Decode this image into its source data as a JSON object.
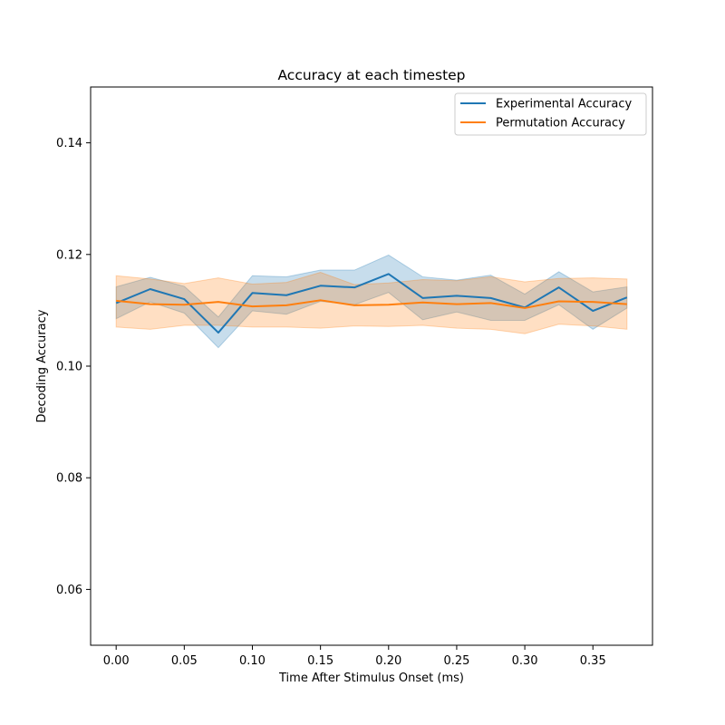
{
  "chart_data": {
    "type": "line",
    "title": "Accuracy at each timestep",
    "xlabel": "Time After Stimulus Onset (ms)",
    "ylabel": "Decoding Accuracy",
    "xlim": [
      -0.01875,
      0.39375
    ],
    "ylim": [
      0.05,
      0.15
    ],
    "xticks": [
      0.0,
      0.05,
      0.1,
      0.15,
      0.2,
      0.25,
      0.3,
      0.35
    ],
    "xtick_labels": [
      "0.00",
      "0.05",
      "0.10",
      "0.15",
      "0.20",
      "0.25",
      "0.30",
      "0.35"
    ],
    "yticks": [
      0.06,
      0.08,
      0.1,
      0.12,
      0.14
    ],
    "ytick_labels": [
      "0.06",
      "0.08",
      "0.10",
      "0.12",
      "0.14"
    ],
    "grid": false,
    "legend_position": "top-right",
    "x": [
      0.0,
      0.025,
      0.05,
      0.075,
      0.1,
      0.125,
      0.15,
      0.175,
      0.2,
      0.225,
      0.25,
      0.275,
      0.3,
      0.325,
      0.35,
      0.375
    ],
    "series": [
      {
        "name": "Experimental Accuracy",
        "color": "#1f77b4",
        "values": [
          0.1113,
          0.1138,
          0.112,
          0.106,
          0.1131,
          0.1127,
          0.1144,
          0.1141,
          0.1165,
          0.1122,
          0.1126,
          0.1122,
          0.1105,
          0.1141,
          0.1099,
          0.1123
        ],
        "lower": [
          0.1085,
          0.1115,
          0.1095,
          0.1033,
          0.1099,
          0.1093,
          0.1116,
          0.111,
          0.1132,
          0.1083,
          0.1097,
          0.1082,
          0.1082,
          0.111,
          0.1066,
          0.1104
        ],
        "upper": [
          0.1142,
          0.1159,
          0.1143,
          0.1088,
          0.1162,
          0.116,
          0.1172,
          0.1172,
          0.1199,
          0.116,
          0.1154,
          0.1163,
          0.1129,
          0.1169,
          0.1133,
          0.1142
        ]
      },
      {
        "name": "Permutation Accuracy",
        "color": "#ff7f0e",
        "values": [
          0.1117,
          0.1111,
          0.111,
          0.1115,
          0.1107,
          0.1109,
          0.1118,
          0.1109,
          0.111,
          0.1114,
          0.1111,
          0.1113,
          0.1104,
          0.1116,
          0.1115,
          0.1111
        ],
        "lower": [
          0.107,
          0.1066,
          0.1073,
          0.1073,
          0.107,
          0.107,
          0.1068,
          0.1072,
          0.1071,
          0.1073,
          0.1068,
          0.1066,
          0.1058,
          0.1075,
          0.1072,
          0.1066
        ],
        "upper": [
          0.1162,
          0.1156,
          0.1148,
          0.1158,
          0.1147,
          0.115,
          0.1168,
          0.1146,
          0.1149,
          0.1155,
          0.1153,
          0.116,
          0.1151,
          0.1157,
          0.1158,
          0.1156
        ]
      }
    ]
  }
}
